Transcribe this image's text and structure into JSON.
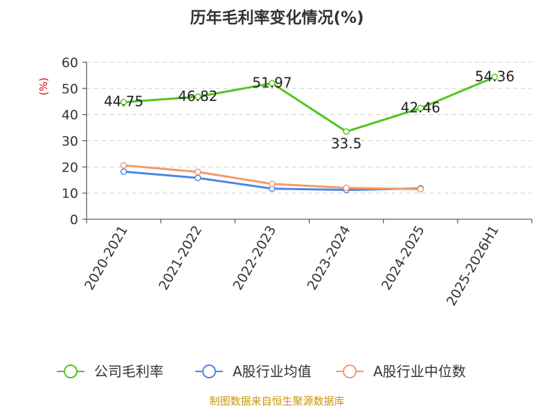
{
  "chart_data": {
    "type": "line",
    "title": "历年毛利率变化情况(%)",
    "ylabel": "(%)",
    "xlabel": "",
    "ylim": [
      0,
      60
    ],
    "yticks": [
      0,
      10,
      20,
      30,
      40,
      50,
      60
    ],
    "grid": true,
    "legend_position": "bottom",
    "categories": [
      "2020-2021",
      "2021-2022",
      "2022-2023",
      "2023-2024",
      "2024-2025",
      "2025-2026H1"
    ],
    "series": [
      {
        "name": "公司毛利率",
        "color": "#52c41a",
        "values": [
          44.75,
          46.82,
          51.97,
          33.5,
          42.46,
          54.36
        ],
        "data_labels": [
          "44.75",
          "46.82",
          "51.97",
          "33.5",
          "42.46",
          "54.36"
        ]
      },
      {
        "name": "A股行业均值",
        "color": "#4a86e8",
        "values": [
          18.2,
          15.8,
          11.7,
          11.2,
          11.8,
          null
        ]
      },
      {
        "name": "A股行业中位数",
        "color": "#f39a6b",
        "values": [
          20.6,
          18.1,
          13.5,
          12.0,
          11.5,
          null
        ]
      }
    ]
  },
  "source_note": "制图数据来自恒生聚源数据库"
}
